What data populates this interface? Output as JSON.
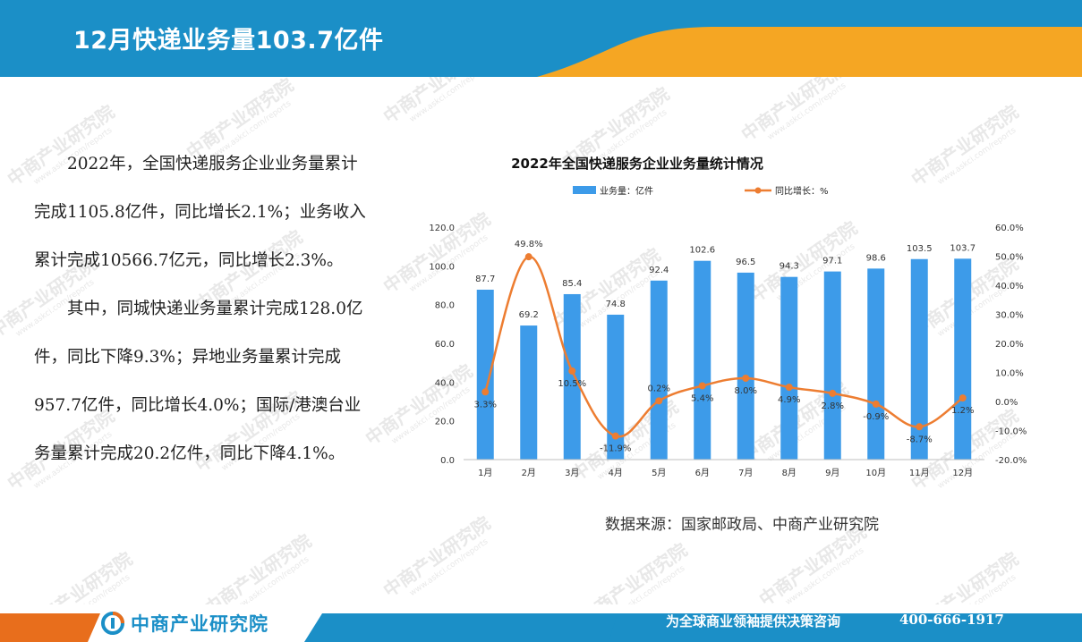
{
  "header": {
    "title": "12月快递业务量103.7亿件"
  },
  "body": {
    "paragraphs": [
      "2022年，全国快递服务企业业务量累计完成1105.8亿件，同比增长2.1%；业务收入累计完成10566.7亿元，同比增长2.3%。",
      "其中，同城快递业务量累计完成128.0亿件，同比下降9.3%；异地业务量累计完成957.7亿件，同比增长4.0%；国际/港澳台业务量累计完成20.2亿件，同比下降4.1%。"
    ]
  },
  "source": "数据来源：国家邮政局、中商产业研究院",
  "footer": {
    "brand": "中商产业研究院",
    "slogan": "为全球商业领袖提供决策咨询",
    "phone": "400-666-1917"
  },
  "watermark": {
    "text": "中商产业研究院",
    "sub": "www.askci.com/reports"
  },
  "colors": {
    "header_blue": "#1b8fc7",
    "accent_orange": "#f5a623",
    "bar_blue": "#3d9be9",
    "line_orange": "#ed7d31"
  },
  "chart_data": {
    "type": "bar",
    "title": "2022年全国快递服务企业业务量统计情况",
    "categories": [
      "1月",
      "2月",
      "3月",
      "4月",
      "5月",
      "6月",
      "7月",
      "8月",
      "9月",
      "10月",
      "11月",
      "12月"
    ],
    "series": [
      {
        "name": "业务量：亿件",
        "type": "bar",
        "axis": "left",
        "values": [
          87.7,
          69.2,
          85.4,
          74.8,
          92.4,
          102.6,
          96.5,
          94.3,
          97.1,
          98.6,
          103.5,
          103.7
        ],
        "labels": [
          "87.7",
          "69.2",
          "85.4",
          "74.8",
          "92.4",
          "102.6",
          "96.5",
          "94.3",
          "97.1",
          "98.6",
          "103.5",
          "103.7"
        ]
      },
      {
        "name": "同比增长：%",
        "type": "line",
        "axis": "right",
        "values": [
          3.3,
          49.8,
          10.5,
          -11.9,
          0.2,
          5.4,
          8.0,
          4.9,
          2.8,
          -0.9,
          -8.7,
          1.2
        ],
        "labels": [
          "3.3%",
          "49.8%",
          "10.5%",
          "-11.9%",
          "0.2%",
          "5.4%",
          "8.0%",
          "4.9%",
          "2.8%",
          "-0.9%",
          "-8.7%",
          "1.2%"
        ]
      }
    ],
    "ylim_left": [
      0,
      120
    ],
    "yticks_left": [
      "0.0",
      "20.0",
      "40.0",
      "60.0",
      "80.0",
      "100.0",
      "120.0"
    ],
    "ylim_right": [
      -20,
      60
    ],
    "yticks_right": [
      "-20.0%",
      "-10.0%",
      "0.0%",
      "10.0%",
      "20.0%",
      "30.0%",
      "40.0%",
      "50.0%",
      "60.0%"
    ],
    "legend_position": "top",
    "grid": false
  }
}
